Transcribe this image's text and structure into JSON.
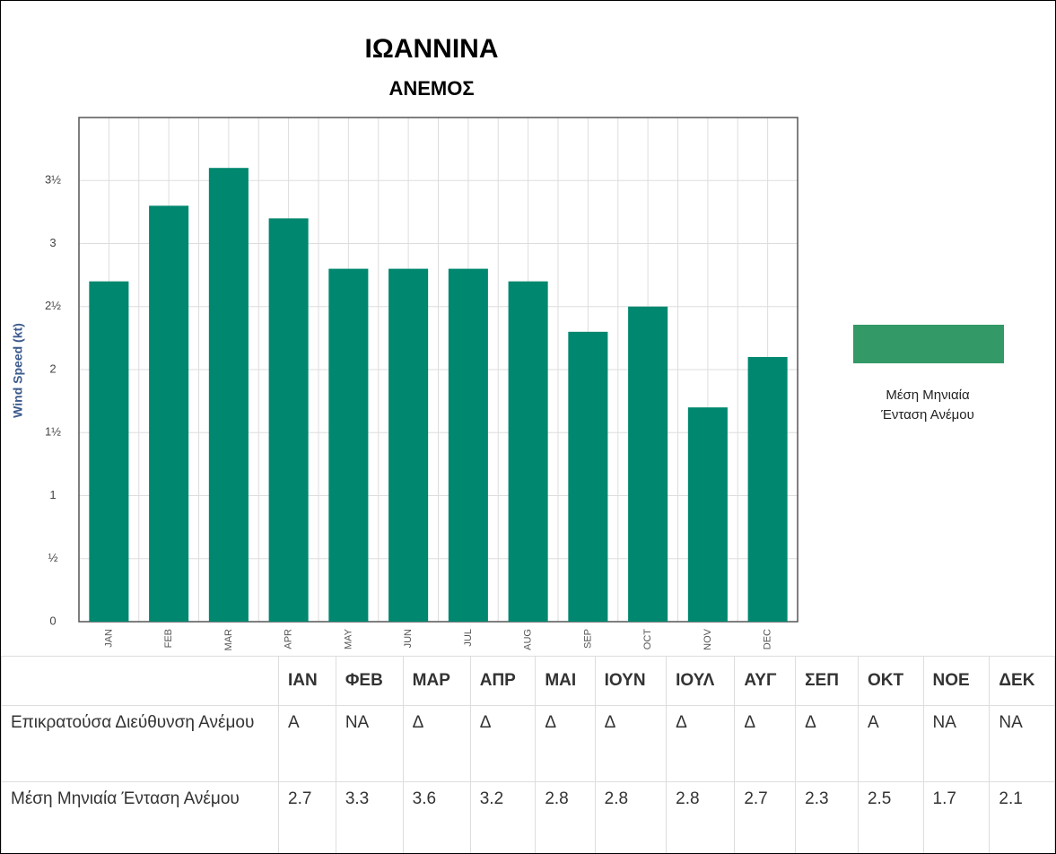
{
  "chart_data": {
    "type": "bar",
    "title": "ΙΩΑΝΝΙΝΑ",
    "subtitle": "ΑΝΕΜΟΣ",
    "y_label": "Wind Speed (kt)",
    "categories": [
      "JAN",
      "FEB",
      "MAR",
      "APR",
      "MAY",
      "JUN",
      "JUL",
      "AUG",
      "SEP",
      "OCT",
      "NOV",
      "DEC"
    ],
    "series": [
      {
        "name": "Μέση Μηνιαία Ένταση Ανέμου",
        "color": "#00876f",
        "values": [
          2.7,
          3.3,
          3.6,
          3.2,
          2.8,
          2.8,
          2.8,
          2.7,
          2.3,
          2.5,
          1.7,
          2.1
        ]
      }
    ],
    "legend_color": "#339966",
    "ylim": [
      0,
      4
    ],
    "yticks": [
      0,
      {
        "value": 0.5,
        "label": "½"
      },
      1,
      {
        "value": 1.5,
        "label": "1½"
      },
      2,
      {
        "value": 2.5,
        "label": "2½"
      },
      3,
      {
        "value": 3.5,
        "label": "3½"
      }
    ],
    "grid": true
  },
  "table": {
    "columns": [
      "ΙΑΝ",
      "ΦΕΒ",
      "ΜΑΡ",
      "ΑΠΡ",
      "ΜΑΙ",
      "ΙΟΥΝ",
      "ΙΟΥΛ",
      "ΑΥΓ",
      "ΣΕΠ",
      "ΟΚΤ",
      "ΝΟΕ",
      "ΔΕΚ"
    ],
    "rows": [
      {
        "label": "Επικρατούσα Διεύθυνση Ανέμου",
        "values": [
          "Α",
          "ΝΑ",
          "Δ",
          "Δ",
          "Δ",
          "Δ",
          "Δ",
          "Δ",
          "Δ",
          "Α",
          "ΝΑ",
          "ΝΑ"
        ]
      },
      {
        "label": "Μέση Μηνιαία Ένταση Ανέμου",
        "values": [
          2.7,
          3.3,
          3.6,
          3.2,
          2.8,
          2.8,
          2.8,
          2.7,
          2.3,
          2.5,
          1.7,
          2.1
        ]
      }
    ]
  }
}
